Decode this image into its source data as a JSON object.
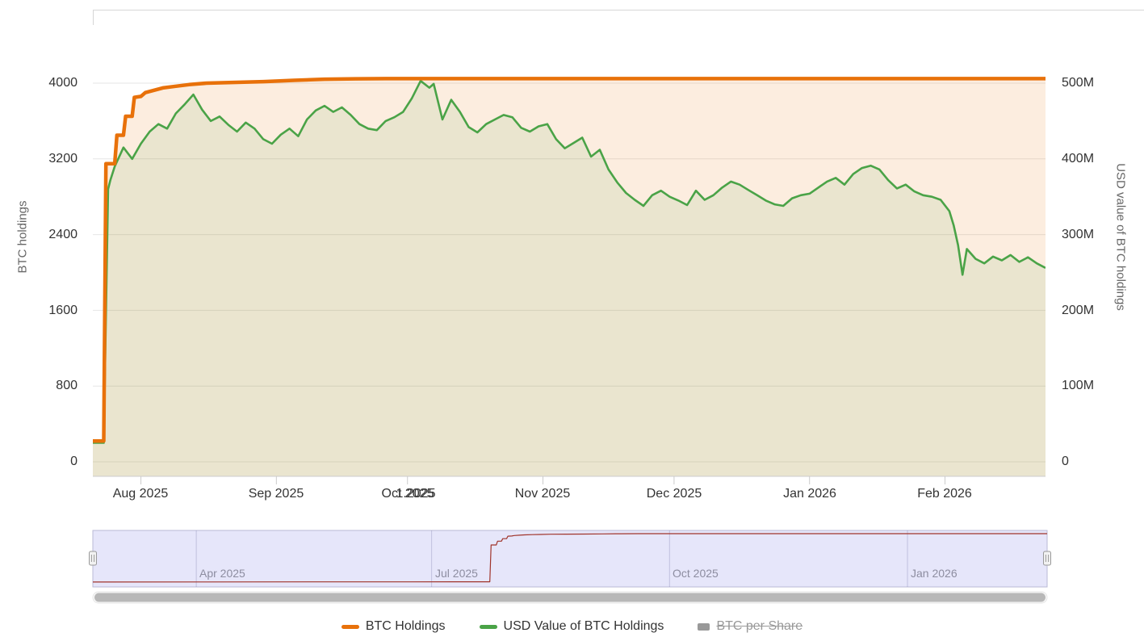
{
  "colors": {
    "orange": "#e8710a",
    "green": "#4aa347",
    "orange_fill": "rgba(232,113,10,0.13)",
    "green_fill": "rgba(74,163,71,0.10)",
    "grid": "#e6e6e6",
    "axis_line": "#cccccc",
    "navigator_line": "#a0342b",
    "navigator_mask": "rgba(102,102,224,0.16)",
    "navigator_outline": "#b9b9d6",
    "navigator_grid": "rgba(110,110,160,0.30)",
    "scrollbar_thumb": "#b8b8b8",
    "label_color": "#333333",
    "axis_title_color": "#666666",
    "nav_label_color": "#8d8da0",
    "disabled_color": "#999999"
  },
  "legend": {
    "items": [
      {
        "label": "BTC Holdings",
        "color": "#e8710a",
        "enabled": true
      },
      {
        "label": "USD Value of BTC Holdings",
        "color": "#4aa347",
        "enabled": true
      },
      {
        "label": "BTC per Share",
        "color": "#999999",
        "enabled": false
      }
    ]
  },
  "chart_data": {
    "type": "line",
    "style": "stock-chart-with-navigator-and-scrollbar",
    "main_range": [
      "2025-07-21",
      "2026-02-24"
    ],
    "nav_range": [
      "2025-02-20",
      "2026-02-24"
    ],
    "x_overlap_label": "1.2025",
    "x_ticks": [
      {
        "date": "2025-08-01",
        "label": "Aug 2025"
      },
      {
        "date": "2025-09-01",
        "label": "Sep 2025"
      },
      {
        "date": "2025-10-01",
        "label": "Oct 2025"
      },
      {
        "date": "2025-11-01",
        "label": "Nov 2025"
      },
      {
        "date": "2025-12-01",
        "label": "Dec 2025"
      },
      {
        "date": "2026-01-01",
        "label": "Jan 2026"
      },
      {
        "date": "2026-02-01",
        "label": "Feb 2026"
      }
    ],
    "nav_ticks": [
      {
        "date": "2025-04-01",
        "label": "Apr 2025"
      },
      {
        "date": "2025-07-01",
        "label": "Jul 2025"
      },
      {
        "date": "2025-10-01",
        "label": "Oct 2025"
      },
      {
        "date": "2026-01-01",
        "label": "Jan 2026"
      }
    ],
    "y_left": {
      "title": "BTC holdings",
      "ticks": [
        0,
        800,
        1600,
        2400,
        3200,
        4000
      ],
      "labels_top_to_bottom": [
        "4000",
        "3200",
        "2400",
        "1600",
        "800",
        "0"
      ],
      "ylim": [
        0,
        4050
      ]
    },
    "y_right": {
      "title": "USD value of BTC holdings",
      "ticks_millions": [
        0,
        100,
        200,
        300,
        400,
        500
      ],
      "labels_top_to_bottom": [
        "500M",
        "400M",
        "300M",
        "200M",
        "100M",
        "0"
      ],
      "ylim_millions": [
        0,
        505
      ]
    },
    "series": [
      {
        "name": "BTC Holdings",
        "axis": "left",
        "color": "#e8710a",
        "visible": true,
        "points": [
          [
            "2025-02-20",
            200
          ],
          [
            "2025-04-01",
            205
          ],
          [
            "2025-05-15",
            210
          ],
          [
            "2025-06-20",
            215
          ],
          [
            "2025-07-10",
            218
          ],
          [
            "2025-07-21",
            220
          ],
          [
            "2025-07-23T12:00",
            220
          ],
          [
            "2025-07-24",
            3150
          ],
          [
            "2025-07-26",
            3150
          ],
          [
            "2025-07-26T12:00",
            3450
          ],
          [
            "2025-07-28",
            3450
          ],
          [
            "2025-07-28T12:00",
            3650
          ],
          [
            "2025-07-30",
            3650
          ],
          [
            "2025-07-30T12:00",
            3850
          ],
          [
            "2025-08-01",
            3860
          ],
          [
            "2025-08-02",
            3900
          ],
          [
            "2025-08-04",
            3925
          ],
          [
            "2025-08-06",
            3950
          ],
          [
            "2025-08-09",
            3968
          ],
          [
            "2025-08-12",
            3985
          ],
          [
            "2025-08-16",
            4000
          ],
          [
            "2025-08-22",
            4008
          ],
          [
            "2025-08-29",
            4016
          ],
          [
            "2025-09-05",
            4030
          ],
          [
            "2025-09-12",
            4042
          ],
          [
            "2025-09-19",
            4046
          ],
          [
            "2025-09-26",
            4048
          ],
          [
            "2026-02-24",
            4048
          ]
        ]
      },
      {
        "name": "USD Value of BTC Holdings",
        "axis": "right",
        "color": "#4aa347",
        "visible": true,
        "unit": "millions USD",
        "points": [
          [
            "2025-07-15",
            25
          ],
          [
            "2025-07-23T12:00",
            25
          ],
          [
            "2025-07-24T12:00",
            360
          ],
          [
            "2025-07-25",
            372
          ],
          [
            "2025-07-26",
            390
          ],
          [
            "2025-07-28",
            415
          ],
          [
            "2025-07-30",
            400
          ],
          [
            "2025-08-01",
            420
          ],
          [
            "2025-08-03",
            436
          ],
          [
            "2025-08-05",
            446
          ],
          [
            "2025-08-07",
            440
          ],
          [
            "2025-08-09",
            460
          ],
          [
            "2025-08-11",
            472
          ],
          [
            "2025-08-13",
            485
          ],
          [
            "2025-08-15",
            465
          ],
          [
            "2025-08-17",
            450
          ],
          [
            "2025-08-19",
            456
          ],
          [
            "2025-08-21",
            445
          ],
          [
            "2025-08-23",
            436
          ],
          [
            "2025-08-25",
            448
          ],
          [
            "2025-08-27",
            440
          ],
          [
            "2025-08-29",
            426
          ],
          [
            "2025-08-31",
            420
          ],
          [
            "2025-09-02",
            432
          ],
          [
            "2025-09-04",
            440
          ],
          [
            "2025-09-06",
            430
          ],
          [
            "2025-09-08",
            452
          ],
          [
            "2025-09-10",
            464
          ],
          [
            "2025-09-12",
            470
          ],
          [
            "2025-09-14",
            462
          ],
          [
            "2025-09-16",
            468
          ],
          [
            "2025-09-18",
            458
          ],
          [
            "2025-09-20",
            446
          ],
          [
            "2025-09-22",
            440
          ],
          [
            "2025-09-24",
            438
          ],
          [
            "2025-09-26",
            450
          ],
          [
            "2025-09-28",
            455
          ],
          [
            "2025-09-30",
            462
          ],
          [
            "2025-10-02",
            480
          ],
          [
            "2025-10-04",
            503
          ],
          [
            "2025-10-06",
            494
          ],
          [
            "2025-10-07",
            499
          ],
          [
            "2025-10-09",
            452
          ],
          [
            "2025-10-11",
            478
          ],
          [
            "2025-10-13",
            462
          ],
          [
            "2025-10-15",
            442
          ],
          [
            "2025-10-17",
            435
          ],
          [
            "2025-10-19",
            446
          ],
          [
            "2025-10-21",
            452
          ],
          [
            "2025-10-23",
            458
          ],
          [
            "2025-10-25",
            455
          ],
          [
            "2025-10-27",
            441
          ],
          [
            "2025-10-29",
            436
          ],
          [
            "2025-10-31",
            443
          ],
          [
            "2025-11-02",
            446
          ],
          [
            "2025-11-04",
            426
          ],
          [
            "2025-11-06",
            414
          ],
          [
            "2025-11-08",
            421
          ],
          [
            "2025-11-10",
            428
          ],
          [
            "2025-11-12",
            403
          ],
          [
            "2025-11-14",
            412
          ],
          [
            "2025-11-16",
            386
          ],
          [
            "2025-11-18",
            369
          ],
          [
            "2025-11-20",
            355
          ],
          [
            "2025-11-22",
            346
          ],
          [
            "2025-11-24",
            338
          ],
          [
            "2025-11-26",
            352
          ],
          [
            "2025-11-28",
            358
          ],
          [
            "2025-11-30",
            350
          ],
          [
            "2025-12-02",
            345
          ],
          [
            "2025-12-04",
            339
          ],
          [
            "2025-12-06",
            358
          ],
          [
            "2025-12-08",
            346
          ],
          [
            "2025-12-10",
            352
          ],
          [
            "2025-12-12",
            362
          ],
          [
            "2025-12-14",
            370
          ],
          [
            "2025-12-16",
            366
          ],
          [
            "2025-12-18",
            359
          ],
          [
            "2025-12-20",
            352
          ],
          [
            "2025-12-22",
            345
          ],
          [
            "2025-12-24",
            340
          ],
          [
            "2025-12-26",
            338
          ],
          [
            "2025-12-28",
            348
          ],
          [
            "2025-12-30",
            352
          ],
          [
            "2026-01-01",
            354
          ],
          [
            "2026-01-03",
            362
          ],
          [
            "2026-01-05",
            370
          ],
          [
            "2026-01-07",
            375
          ],
          [
            "2026-01-09",
            366
          ],
          [
            "2026-01-11",
            380
          ],
          [
            "2026-01-13",
            388
          ],
          [
            "2026-01-15",
            391
          ],
          [
            "2026-01-17",
            386
          ],
          [
            "2026-01-19",
            372
          ],
          [
            "2026-01-21",
            361
          ],
          [
            "2026-01-23",
            366
          ],
          [
            "2026-01-25",
            357
          ],
          [
            "2026-01-27",
            352
          ],
          [
            "2026-01-29",
            350
          ],
          [
            "2026-01-31",
            346
          ],
          [
            "2026-02-02",
            331
          ],
          [
            "2026-02-03",
            312
          ],
          [
            "2026-02-04",
            286
          ],
          [
            "2026-02-05",
            247
          ],
          [
            "2026-02-06",
            281
          ],
          [
            "2026-02-08",
            268
          ],
          [
            "2026-02-10",
            262
          ],
          [
            "2026-02-12",
            271
          ],
          [
            "2026-02-14",
            266
          ],
          [
            "2026-02-16",
            273
          ],
          [
            "2026-02-18",
            264
          ],
          [
            "2026-02-20",
            270
          ],
          [
            "2026-02-22",
            262
          ],
          [
            "2026-02-24",
            256
          ]
        ]
      },
      {
        "name": "BTC per Share",
        "axis": "hidden",
        "color": "#999999",
        "visible": false,
        "points": []
      }
    ]
  }
}
